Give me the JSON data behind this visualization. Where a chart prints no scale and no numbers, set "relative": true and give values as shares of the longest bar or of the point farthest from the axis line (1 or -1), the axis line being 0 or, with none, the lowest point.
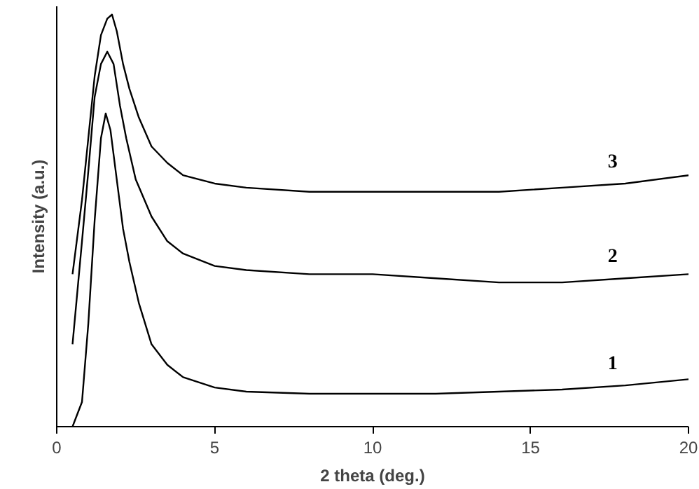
{
  "chart_data": {
    "type": "line",
    "relative": true,
    "xlabel": "2 theta (deg.)",
    "ylabel": "Intensity (a.u.)",
    "xlim": [
      0,
      20
    ],
    "xticks": [
      0,
      5,
      10,
      15,
      20
    ],
    "grid": false,
    "marker": "none",
    "line_style": "solid",
    "series": [
      {
        "name": "1",
        "color": "#000000",
        "x": [
          0.5,
          0.8,
          1.0,
          1.2,
          1.4,
          1.55,
          1.7,
          1.9,
          2.1,
          2.3,
          2.6,
          3,
          3.5,
          4,
          5,
          6,
          8,
          10,
          12,
          14,
          16,
          18,
          20
        ],
        "values": [
          0,
          0.06,
          0.25,
          0.5,
          0.7,
          0.76,
          0.72,
          0.6,
          0.48,
          0.4,
          0.3,
          0.2,
          0.15,
          0.12,
          0.095,
          0.085,
          0.08,
          0.08,
          0.08,
          0.085,
          0.09,
          0.1,
          0.115
        ]
      },
      {
        "name": "2",
        "color": "#000000",
        "x": [
          0.5,
          0.8,
          1.0,
          1.2,
          1.4,
          1.6,
          1.8,
          2.0,
          2.2,
          2.5,
          3,
          3.5,
          4,
          5,
          6,
          8,
          10,
          12,
          14,
          16,
          18,
          20
        ],
        "values": [
          0.2,
          0.45,
          0.62,
          0.8,
          0.88,
          0.91,
          0.88,
          0.78,
          0.7,
          0.6,
          0.51,
          0.45,
          0.42,
          0.39,
          0.38,
          0.37,
          0.37,
          0.36,
          0.35,
          0.35,
          0.36,
          0.37
        ]
      },
      {
        "name": "3",
        "color": "#000000",
        "x": [
          0.5,
          0.8,
          1.0,
          1.2,
          1.4,
          1.6,
          1.75,
          1.9,
          2.1,
          2.3,
          2.6,
          3,
          3.5,
          4,
          5,
          6,
          8,
          10,
          12,
          14,
          16,
          18,
          20
        ],
        "values": [
          0.37,
          0.55,
          0.7,
          0.85,
          0.95,
          0.99,
          1.0,
          0.96,
          0.88,
          0.82,
          0.75,
          0.68,
          0.64,
          0.61,
          0.59,
          0.58,
          0.57,
          0.57,
          0.57,
          0.57,
          0.58,
          0.59,
          0.61
        ]
      }
    ]
  }
}
